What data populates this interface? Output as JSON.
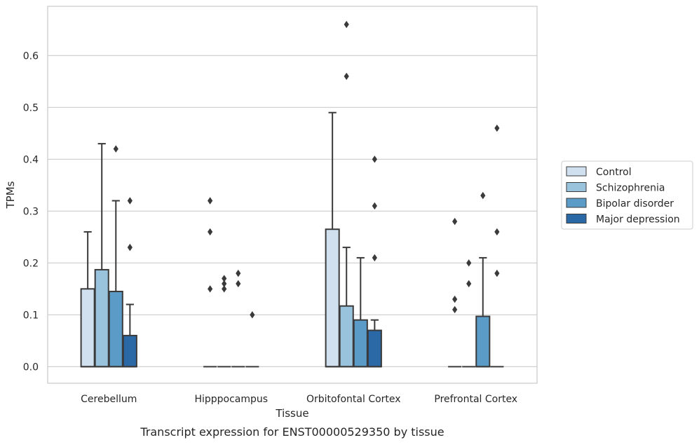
{
  "chart_data": {
    "type": "box",
    "title": "Transcript expression for ENST00000529350 by tissue",
    "xlabel": "Tissue",
    "ylabel": "TPMs",
    "ylim": [
      -0.032,
      0.695
    ],
    "yticks": [
      0.0,
      0.1,
      0.2,
      0.3,
      0.4,
      0.5,
      0.6
    ],
    "ytick_labels": [
      "0.0",
      "0.1",
      "0.2",
      "0.3",
      "0.4",
      "0.5",
      "0.6"
    ],
    "grid": "horizontal",
    "legend_position": "right",
    "categories": [
      "Cerebellum",
      "Hipppocampus",
      "Orbitofontal Cortex",
      "Prefrontal Cortex"
    ],
    "series": [
      {
        "name": "Control",
        "color": "#d0e0ef",
        "boxes": [
          {
            "q1": 0.0,
            "median": 0.0,
            "q3": 0.15,
            "whisker_low": 0.0,
            "whisker_high": 0.26,
            "outliers": []
          },
          {
            "q1": 0.0,
            "median": 0.0,
            "q3": 0.0,
            "whisker_low": 0.0,
            "whisker_high": 0.0,
            "outliers": [
              0.15,
              0.26,
              0.32
            ]
          },
          {
            "q1": 0.0,
            "median": 0.0,
            "q3": 0.265,
            "whisker_low": 0.0,
            "whisker_high": 0.49,
            "outliers": []
          },
          {
            "q1": 0.0,
            "median": 0.0,
            "q3": 0.0,
            "whisker_low": 0.0,
            "whisker_high": 0.0,
            "outliers": [
              0.11,
              0.13,
              0.28
            ]
          }
        ]
      },
      {
        "name": "Schizophrenia",
        "color": "#99c2dc",
        "boxes": [
          {
            "q1": 0.0,
            "median": 0.0,
            "q3": 0.187,
            "whisker_low": 0.0,
            "whisker_high": 0.43,
            "outliers": []
          },
          {
            "q1": 0.0,
            "median": 0.0,
            "q3": 0.0,
            "whisker_low": 0.0,
            "whisker_high": 0.0,
            "outliers": [
              0.15,
              0.16,
              0.17
            ]
          },
          {
            "q1": 0.0,
            "median": 0.0,
            "q3": 0.117,
            "whisker_low": 0.0,
            "whisker_high": 0.23,
            "outliers": [
              0.56,
              0.66
            ]
          },
          {
            "q1": 0.0,
            "median": 0.0,
            "q3": 0.0,
            "whisker_low": 0.0,
            "whisker_high": 0.0,
            "outliers": [
              0.16,
              0.2
            ]
          }
        ]
      },
      {
        "name": "Bipolar disorder",
        "color": "#5a9bc7",
        "boxes": [
          {
            "q1": 0.0,
            "median": 0.0,
            "q3": 0.145,
            "whisker_low": 0.0,
            "whisker_high": 0.32,
            "outliers": [
              0.42
            ]
          },
          {
            "q1": 0.0,
            "median": 0.0,
            "q3": 0.0,
            "whisker_low": 0.0,
            "whisker_high": 0.0,
            "outliers": [
              0.16,
              0.18
            ]
          },
          {
            "q1": 0.0,
            "median": 0.0,
            "q3": 0.09,
            "whisker_low": 0.0,
            "whisker_high": 0.21,
            "outliers": []
          },
          {
            "q1": 0.0,
            "median": 0.0,
            "q3": 0.097,
            "whisker_low": 0.0,
            "whisker_high": 0.21,
            "outliers": [
              0.33
            ]
          }
        ]
      },
      {
        "name": "Major depression",
        "color": "#2a68a6",
        "boxes": [
          {
            "q1": 0.0,
            "median": 0.0,
            "q3": 0.06,
            "whisker_low": 0.0,
            "whisker_high": 0.12,
            "outliers": [
              0.23,
              0.32
            ]
          },
          {
            "q1": 0.0,
            "median": 0.0,
            "q3": 0.0,
            "whisker_low": 0.0,
            "whisker_high": 0.0,
            "outliers": [
              0.1
            ]
          },
          {
            "q1": 0.0,
            "median": 0.0,
            "q3": 0.07,
            "whisker_low": 0.0,
            "whisker_high": 0.09,
            "outliers": [
              0.21,
              0.31,
              0.4
            ]
          },
          {
            "q1": 0.0,
            "median": 0.0,
            "q3": 0.0,
            "whisker_low": 0.0,
            "whisker_high": 0.0,
            "outliers": [
              0.18,
              0.26,
              0.46
            ]
          }
        ]
      }
    ],
    "colors": {
      "edge": "#3a3a3a",
      "grid": "#cccccc",
      "frame": "#cccccc",
      "text": "#262626"
    }
  }
}
